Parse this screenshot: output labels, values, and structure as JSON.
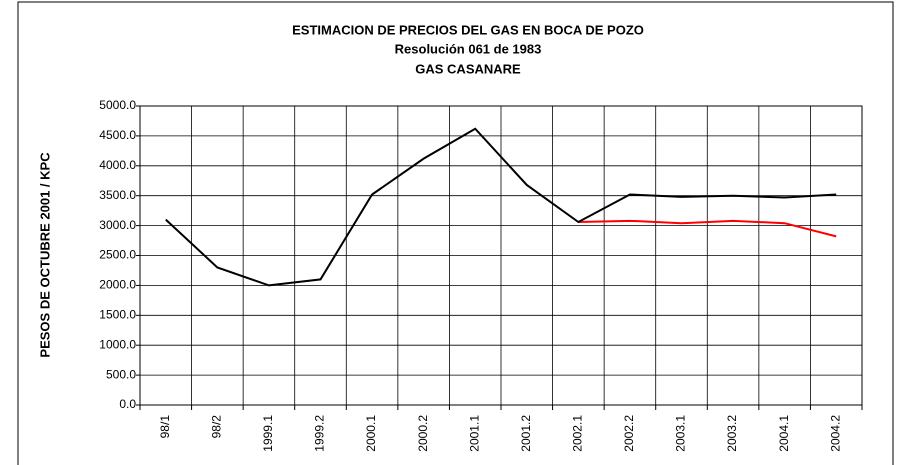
{
  "chart_data": {
    "type": "line",
    "title": [
      "ESTIMACION DE PRECIOS DEL GAS EN BOCA DE POZO",
      "Resolución 061 de 1983",
      "GAS CASANARE"
    ],
    "y_label": "PESOS DE OCTUBRE 2001 / KPC",
    "categories": [
      "98/1",
      "98/2",
      "1999.1",
      "1999.2",
      "2000.1",
      "2000.2",
      "2001.1",
      "2001.2",
      "2002.1",
      "2002.2",
      "2003.1",
      "2003.2",
      "2004.1",
      "2004.2"
    ],
    "series": [
      {
        "color": "#ff0000",
        "values": [
          null,
          null,
          null,
          null,
          null,
          null,
          null,
          null,
          3060,
          3080,
          3040,
          3080,
          3040,
          2820
        ]
      },
      {
        "color": "#000000",
        "values": [
          3100,
          2300,
          2000,
          2100,
          3520,
          4120,
          4620,
          3680,
          3060,
          3520,
          3480,
          3500,
          3470,
          3520
        ]
      }
    ],
    "ylim": [
      0,
      5000
    ],
    "yticks": [
      {
        "value": 0,
        "label": "0.0"
      },
      {
        "value": 500,
        "label": "500.0"
      },
      {
        "value": 1000,
        "label": "1000.0"
      },
      {
        "value": 1500,
        "label": "1500.0"
      },
      {
        "value": 2000,
        "label": "2000.0"
      },
      {
        "value": 2500,
        "label": "2500.0"
      },
      {
        "value": 3000,
        "label": "3000.0"
      },
      {
        "value": 3500,
        "label": "3500.0"
      },
      {
        "value": 4000,
        "label": "4000.0"
      },
      {
        "value": 4500,
        "label": "4500.0"
      },
      {
        "value": 5000,
        "label": "5000.0"
      }
    ],
    "grid": true
  }
}
